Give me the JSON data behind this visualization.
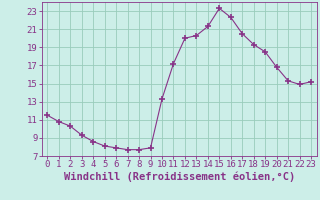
{
  "x": [
    0,
    1,
    2,
    3,
    4,
    5,
    6,
    7,
    8,
    9,
    10,
    11,
    12,
    13,
    14,
    15,
    16,
    17,
    18,
    19,
    20,
    21,
    22,
    23
  ],
  "y": [
    11.5,
    10.8,
    10.3,
    9.3,
    8.6,
    8.1,
    7.9,
    7.7,
    7.7,
    7.9,
    13.3,
    17.2,
    20.0,
    20.3,
    21.3,
    23.3,
    22.3,
    20.5,
    19.3,
    18.5,
    16.8,
    15.3,
    14.9,
    15.2
  ],
  "line_color": "#883388",
  "marker": "+",
  "marker_size": 4,
  "marker_lw": 1.2,
  "bg_color": "#cceee8",
  "grid_color": "#99ccbb",
  "xlabel": "Windchill (Refroidissement éolien,°C)",
  "xlabel_fontsize": 7.5,
  "tick_fontsize": 6.5,
  "ylim": [
    7,
    24
  ],
  "yticks": [
    7,
    9,
    11,
    13,
    15,
    17,
    19,
    21,
    23
  ],
  "xlim": [
    -0.5,
    23.5
  ],
  "xticks": [
    0,
    1,
    2,
    3,
    4,
    5,
    6,
    7,
    8,
    9,
    10,
    11,
    12,
    13,
    14,
    15,
    16,
    17,
    18,
    19,
    20,
    21,
    22,
    23
  ]
}
